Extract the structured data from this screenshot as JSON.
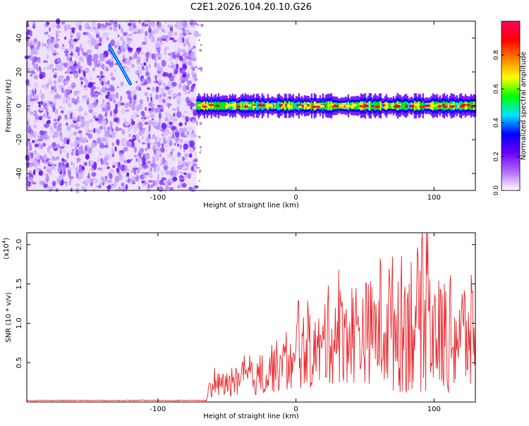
{
  "title": "C2E1.2026.104.20.10.G26",
  "chart_data": [
    {
      "type": "heatmap",
      "xlabel": "Height of straight line (km)",
      "ylabel": "Frequency (Hz)",
      "xlim": [
        -195,
        130
      ],
      "ylim": [
        -50,
        50
      ],
      "x_ticks": [
        -100,
        0,
        100
      ],
      "y_ticks": [
        40,
        20,
        0,
        -20,
        -40
      ],
      "noise_region_x": [
        -195,
        -72
      ],
      "signal_band": {
        "x_start": -72,
        "x_end": 130,
        "center_freq": 0,
        "half_width": 4
      },
      "feature_streak": {
        "x": [
          -135,
          -120
        ],
        "freq": [
          35,
          13
        ]
      },
      "colorbar": {
        "label": "Normalized spectral amplitude",
        "range": [
          0.0,
          1.0
        ],
        "ticks": [
          "0.0",
          "0.2",
          "0.4",
          "0.6",
          "0.8"
        ],
        "colors": [
          "#ffffff",
          "#b06aff",
          "#6b00ff",
          "#0000ff",
          "#00e5ff",
          "#00ff00",
          "#ffff00",
          "#ff7f00",
          "#ff0000",
          "#ff0060"
        ]
      }
    },
    {
      "type": "line",
      "xlabel": "Height of straight line (km)",
      "ylabel": "SNR (10 * v/v)",
      "scale_label": "(x10",
      "scale_exp": "4",
      "scale_close": ")",
      "xlim": [
        -195,
        130
      ],
      "ylim": [
        0.0,
        2.15
      ],
      "x_ticks": [
        -100,
        0,
        100
      ],
      "y_ticks": [
        "0.5",
        "1.0",
        "1.5",
        "2.0"
      ],
      "color": "#e8262b",
      "segments": [
        {
          "x": [
            -195,
            -65
          ],
          "value": 0.02
        },
        {
          "x": [
            -65,
            -60
          ],
          "value": 0.15
        },
        {
          "x": [
            -60,
            -40
          ],
          "value": 0.22
        },
        {
          "x": [
            -40,
            -20
          ],
          "value": 0.3
        },
        {
          "x": [
            -20,
            0
          ],
          "value": 0.45
        },
        {
          "x": [
            0,
            20
          ],
          "value": 0.65
        },
        {
          "x": [
            20,
            35
          ],
          "value": 0.85
        },
        {
          "x": [
            35,
            60
          ],
          "value": 0.9
        },
        {
          "x": [
            60,
            80
          ],
          "value": 1.0
        },
        {
          "x": [
            80,
            100
          ],
          "value": 1.05
        },
        {
          "x": [
            100,
            130
          ],
          "value": 0.85
        }
      ]
    }
  ]
}
